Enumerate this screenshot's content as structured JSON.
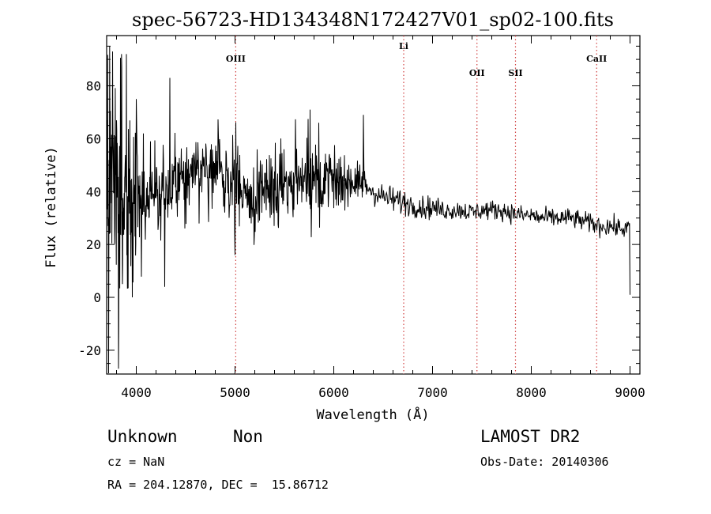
{
  "chart_data": {
    "type": "line",
    "title": "spec-56723-HD134348N172427V01_sp02-100.fits",
    "xlabel": "Wavelength (Å)",
    "ylabel": "Flux (relative)",
    "xlim": [
      3700,
      9100
    ],
    "ylim": [
      -29,
      99
    ],
    "xticks": [
      4000,
      5000,
      6000,
      7000,
      8000,
      9000
    ],
    "yticks": [
      -20,
      0,
      20,
      40,
      60,
      80
    ],
    "grid": false,
    "series_color": "#000000",
    "marker_color": "#d04040",
    "spectral_lines": [
      {
        "name": "OIII",
        "x": 5007
      },
      {
        "name": "Li",
        "x": 6708
      },
      {
        "name": "OII",
        "x": 7450
      },
      {
        "name": "SII",
        "x": 7840
      },
      {
        "name": "CaII",
        "x": 8662
      }
    ],
    "envelope": {
      "x": [
        3700,
        3750,
        3800,
        3850,
        3900,
        4000,
        4100,
        4200,
        4300,
        4400,
        4500,
        4600,
        4700,
        4800,
        4900,
        5000,
        5100,
        5200,
        5300,
        5400,
        5500,
        5600,
        5700,
        5800,
        5900,
        6000,
        6100,
        6200,
        6300,
        6400,
        6500,
        6600,
        6700,
        6800,
        6900,
        7000,
        7100,
        7200,
        7300,
        7400,
        7500,
        7600,
        7700,
        7800,
        7900,
        8000,
        8100,
        8200,
        8300,
        8400,
        8500,
        8600,
        8700,
        8800,
        8900,
        8980
      ],
      "y": [
        45,
        40,
        35,
        35,
        36,
        38,
        40,
        41,
        41,
        44,
        47,
        49,
        49,
        49,
        46,
        42,
        38,
        38,
        40,
        42,
        42,
        43,
        44,
        45,
        44,
        43,
        44,
        44,
        43,
        40,
        38,
        37,
        36,
        35,
        34,
        34,
        33,
        33,
        33,
        32,
        33,
        33,
        33,
        32,
        31,
        31,
        30,
        30,
        30,
        30,
        29,
        28,
        27,
        27,
        26,
        26
      ],
      "noise": [
        25,
        35,
        35,
        30,
        25,
        20,
        17,
        14,
        12,
        10,
        9,
        8,
        9,
        9,
        10,
        10,
        10,
        11,
        11,
        11,
        11,
        11,
        11,
        10,
        9,
        8,
        7,
        6,
        5,
        4,
        4,
        4,
        4,
        3.5,
        3.5,
        3.5,
        3,
        3,
        3,
        3,
        3,
        3,
        3,
        3,
        3,
        3,
        3,
        3,
        3,
        3,
        3,
        3,
        3,
        3,
        3,
        3
      ]
    },
    "features": [
      {
        "x": 3730,
        "y": 95
      },
      {
        "x": 3760,
        "y": 93
      },
      {
        "x": 3820,
        "y": -27
      },
      {
        "x": 3850,
        "y": 92
      },
      {
        "x": 3860,
        "y": 5
      },
      {
        "x": 3900,
        "y": 92
      },
      {
        "x": 3960,
        "y": 0
      },
      {
        "x": 4000,
        "y": 75
      },
      {
        "x": 4290,
        "y": 4
      },
      {
        "x": 4340,
        "y": 83
      },
      {
        "x": 5000,
        "y": 16
      },
      {
        "x": 5760,
        "y": 71
      },
      {
        "x": 6300,
        "y": 69
      },
      {
        "x": 9000,
        "y": 1
      }
    ]
  },
  "info": {
    "class": "Unknown",
    "subclass": "Non",
    "survey": "LAMOST DR2",
    "cz": "cz = NaN",
    "obs_date": "Obs-Date: 20140306",
    "coords": "RA = 204.12870, DEC =  15.86712"
  }
}
